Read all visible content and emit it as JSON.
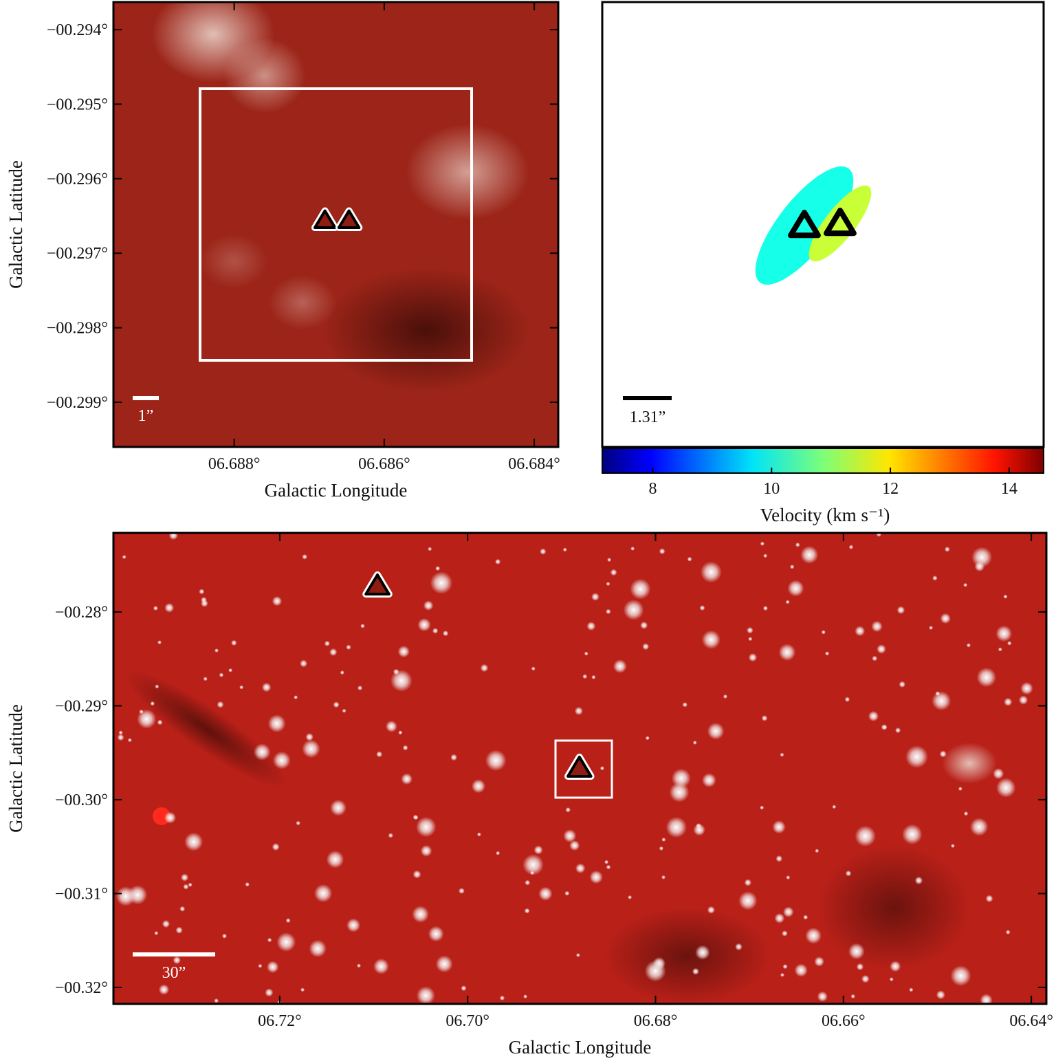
{
  "chart_data": [
    {
      "type": "image",
      "xlabel": "Galactic Longitude",
      "ylabel": "Galactic Latitude",
      "xlim": [
        6.68961,
        6.68368
      ],
      "ylim": [
        -0.2996,
        -0.29363
      ],
      "xticks": [
        {
          "value": 6.688,
          "label": "06.688°"
        },
        {
          "value": 6.686,
          "label": "06.686°"
        },
        {
          "value": 6.684,
          "label": "06.684°"
        }
      ],
      "yticks": [
        {
          "value": -0.294,
          "label": "−00.294°"
        },
        {
          "value": -0.295,
          "label": "−00.295°"
        },
        {
          "value": -0.296,
          "label": "−00.296°"
        },
        {
          "value": -0.297,
          "label": "−00.297°"
        },
        {
          "value": -0.298,
          "label": "−00.298°"
        },
        {
          "value": -0.299,
          "label": "−00.299°"
        }
      ],
      "scale_bar_label": "1”",
      "markers": {
        "x": [
          6.68679,
          6.68647
        ],
        "y": [
          -0.29656,
          -0.29656
        ]
      }
    },
    {
      "type": "velocity-map",
      "colorbar_label": "Velocity (km s⁻¹)",
      "clim": [
        7.15,
        14.58
      ],
      "cticks": [
        8,
        10,
        12,
        14
      ],
      "scale_bar_label": "1.31”",
      "sources": {
        "velocity": [
          10.1,
          11.4
        ]
      }
    },
    {
      "type": "image",
      "xlabel": "Galactic Longitude",
      "ylabel": "Galactic Latitude",
      "xlim": [
        6.7377,
        6.6384
      ],
      "ylim": [
        -0.32176,
        -0.27158
      ],
      "xticks": [
        {
          "value": 6.72,
          "label": "06.72°"
        },
        {
          "value": 6.7,
          "label": "06.70°"
        },
        {
          "value": 6.68,
          "label": "06.68°"
        },
        {
          "value": 6.66,
          "label": "06.66°"
        },
        {
          "value": 6.64,
          "label": "06.64°"
        }
      ],
      "yticks": [
        {
          "value": -0.28,
          "label": "−00.28°"
        },
        {
          "value": -0.29,
          "label": "−00.29°"
        },
        {
          "value": -0.3,
          "label": "−00.30°"
        },
        {
          "value": -0.31,
          "label": "−00.31°"
        },
        {
          "value": -0.32,
          "label": "−00.32°"
        }
      ],
      "scale_bar_label": "30”",
      "markers": {
        "x": [
          6.7096,
          6.6881
        ],
        "y": [
          -0.27722,
          -0.29663
        ]
      }
    }
  ]
}
